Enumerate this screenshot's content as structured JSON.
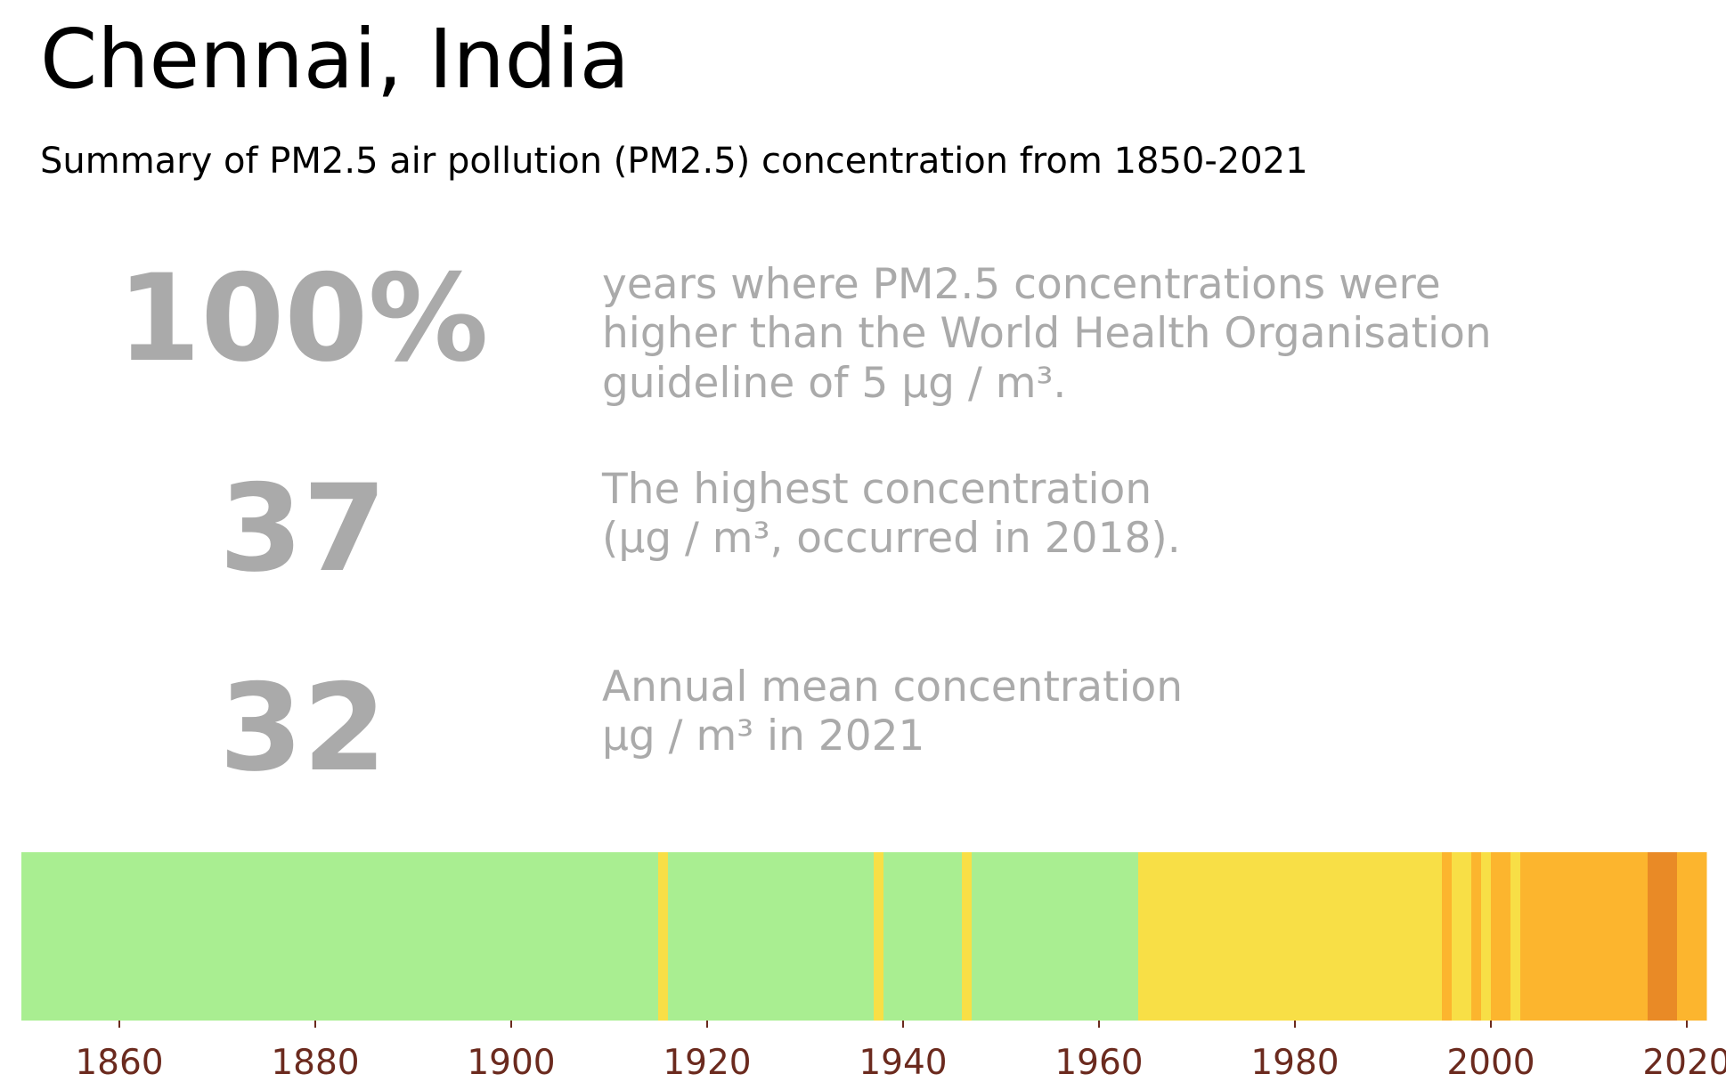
{
  "header": {
    "title": "Chennai, India",
    "subtitle": "Summary of PM2.5 air pollution (PM2.5) concentration from 1850-2021"
  },
  "stats": [
    {
      "value": "100%",
      "lines": [
        "years where PM2.5 concentrations were",
        "higher than the World Health Organisation",
        "guideline of 5 µg / m³."
      ]
    },
    {
      "value": "37",
      "lines": [
        "The highest concentration",
        "(µg / m³, occurred in 2018)."
      ]
    },
    {
      "value": "32",
      "lines": [
        "Annual mean concentration",
        "µg / m³ in 2021"
      ]
    }
  ],
  "colors": {
    "green": "#a9ee91",
    "yellow": "#f8df46",
    "light_orange": "#fcb52e",
    "dark_orange": "#e98a26",
    "tick_label": "#6b2a1e",
    "stat_gray": "#aaaaaa"
  },
  "chart_data": {
    "type": "heatmap",
    "title": "",
    "xlabel": "",
    "ylabel": "",
    "xlim": [
      1850,
      2022
    ],
    "grid": false,
    "x_ticks": [
      "1860",
      "1880",
      "1900",
      "1920",
      "1940",
      "1960",
      "1980",
      "2000",
      "2020"
    ],
    "bands": [
      {
        "start": 1850,
        "end": 1915,
        "color": "green"
      },
      {
        "start": 1915,
        "end": 1916,
        "color": "yellow"
      },
      {
        "start": 1916,
        "end": 1937,
        "color": "green"
      },
      {
        "start": 1937,
        "end": 1938,
        "color": "yellow"
      },
      {
        "start": 1938,
        "end": 1946,
        "color": "green"
      },
      {
        "start": 1946,
        "end": 1947,
        "color": "yellow"
      },
      {
        "start": 1947,
        "end": 1964,
        "color": "green"
      },
      {
        "start": 1964,
        "end": 1995,
        "color": "yellow"
      },
      {
        "start": 1995,
        "end": 1996,
        "color": "light_orange"
      },
      {
        "start": 1996,
        "end": 1998,
        "color": "yellow"
      },
      {
        "start": 1998,
        "end": 1999,
        "color": "light_orange"
      },
      {
        "start": 1999,
        "end": 2000,
        "color": "yellow"
      },
      {
        "start": 2000,
        "end": 2002,
        "color": "light_orange"
      },
      {
        "start": 2002,
        "end": 2003,
        "color": "yellow"
      },
      {
        "start": 2003,
        "end": 2016,
        "color": "light_orange"
      },
      {
        "start": 2016,
        "end": 2019,
        "color": "dark_orange"
      },
      {
        "start": 2019,
        "end": 2022,
        "color": "light_orange"
      }
    ]
  }
}
